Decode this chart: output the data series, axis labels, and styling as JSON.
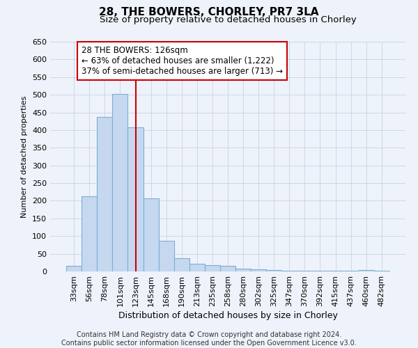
{
  "title": "28, THE BOWERS, CHORLEY, PR7 3LA",
  "subtitle": "Size of property relative to detached houses in Chorley",
  "xlabel": "Distribution of detached houses by size in Chorley",
  "ylabel": "Number of detached properties",
  "categories": [
    "33sqm",
    "56sqm",
    "78sqm",
    "101sqm",
    "123sqm",
    "145sqm",
    "168sqm",
    "190sqm",
    "213sqm",
    "235sqm",
    "258sqm",
    "280sqm",
    "302sqm",
    "325sqm",
    "347sqm",
    "370sqm",
    "392sqm",
    "415sqm",
    "437sqm",
    "460sqm",
    "482sqm"
  ],
  "values": [
    15,
    213,
    437,
    503,
    408,
    207,
    87,
    38,
    22,
    18,
    15,
    8,
    5,
    3,
    2,
    2,
    2,
    2,
    2,
    3,
    2
  ],
  "bar_color": "#c5d8f0",
  "bar_edge_color": "#7bafd4",
  "bar_linewidth": 0.8,
  "grid_color": "#c8d4e8",
  "background_color": "#eef2fa",
  "vline_color": "#cc0000",
  "vline_x": 4.0,
  "ylim": [
    0,
    650
  ],
  "yticks": [
    0,
    50,
    100,
    150,
    200,
    250,
    300,
    350,
    400,
    450,
    500,
    550,
    600,
    650
  ],
  "annotation_text": "28 THE BOWERS: 126sqm\n← 63% of detached houses are smaller (1,222)\n37% of semi-detached houses are larger (713) →",
  "annotation_box_edgecolor": "#cc0000",
  "annotation_box_facecolor": "#ffffff",
  "footer_text": "Contains HM Land Registry data © Crown copyright and database right 2024.\nContains public sector information licensed under the Open Government Licence v3.0.",
  "title_fontsize": 11,
  "subtitle_fontsize": 9.5,
  "xlabel_fontsize": 9,
  "ylabel_fontsize": 8,
  "tick_fontsize": 8,
  "annotation_fontsize": 8.5,
  "footer_fontsize": 7
}
